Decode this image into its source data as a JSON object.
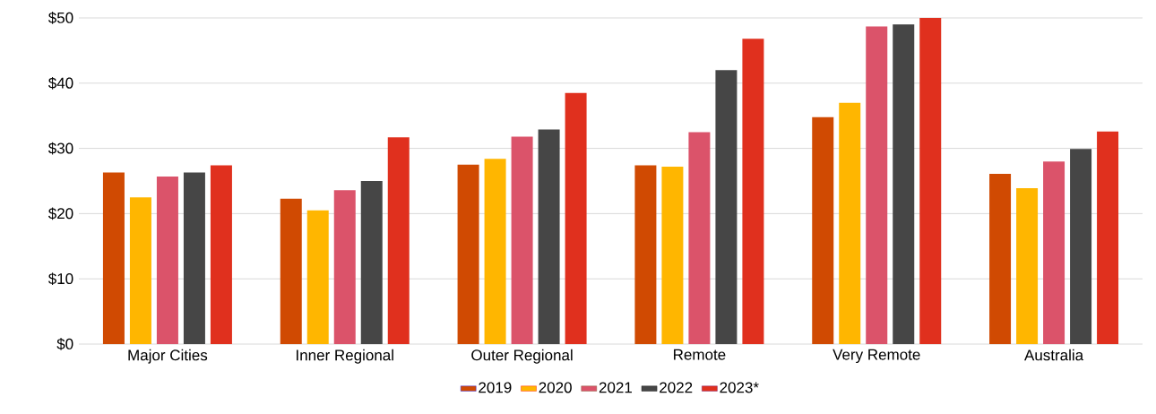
{
  "chart_data": {
    "type": "bar",
    "categories": [
      "Major Cities",
      "Inner Regional",
      "Outer Regional",
      "Remote",
      "Very Remote",
      "Australia"
    ],
    "series": [
      {
        "name": "2019",
        "color": "#d04a02",
        "values": [
          26.3,
          22.3,
          27.5,
          27.4,
          34.8,
          26.1
        ]
      },
      {
        "name": "2020",
        "color": "#ffb600",
        "values": [
          22.5,
          20.5,
          28.4,
          27.2,
          37.0,
          23.9
        ]
      },
      {
        "name": "2021",
        "color": "#db536a",
        "values": [
          25.7,
          23.6,
          31.8,
          32.5,
          48.7,
          28.0
        ]
      },
      {
        "name": "2022",
        "color": "#464646",
        "values": [
          26.3,
          25.0,
          32.9,
          42.0,
          49.0,
          29.9
        ]
      },
      {
        "name": "2023*",
        "color": "#e0301e",
        "values": [
          27.4,
          31.7,
          38.5,
          46.8,
          50.0,
          32.6
        ]
      }
    ],
    "ylim": [
      0,
      50
    ],
    "yticks": [
      {
        "value": 0,
        "label": "$0"
      },
      {
        "value": 10,
        "label": "$10"
      },
      {
        "value": 20,
        "label": "$20"
      },
      {
        "value": 30,
        "label": "$30"
      },
      {
        "value": 40,
        "label": "$40"
      },
      {
        "value": 50,
        "label": "$50"
      }
    ],
    "grid": "y",
    "legend": "bottom"
  }
}
